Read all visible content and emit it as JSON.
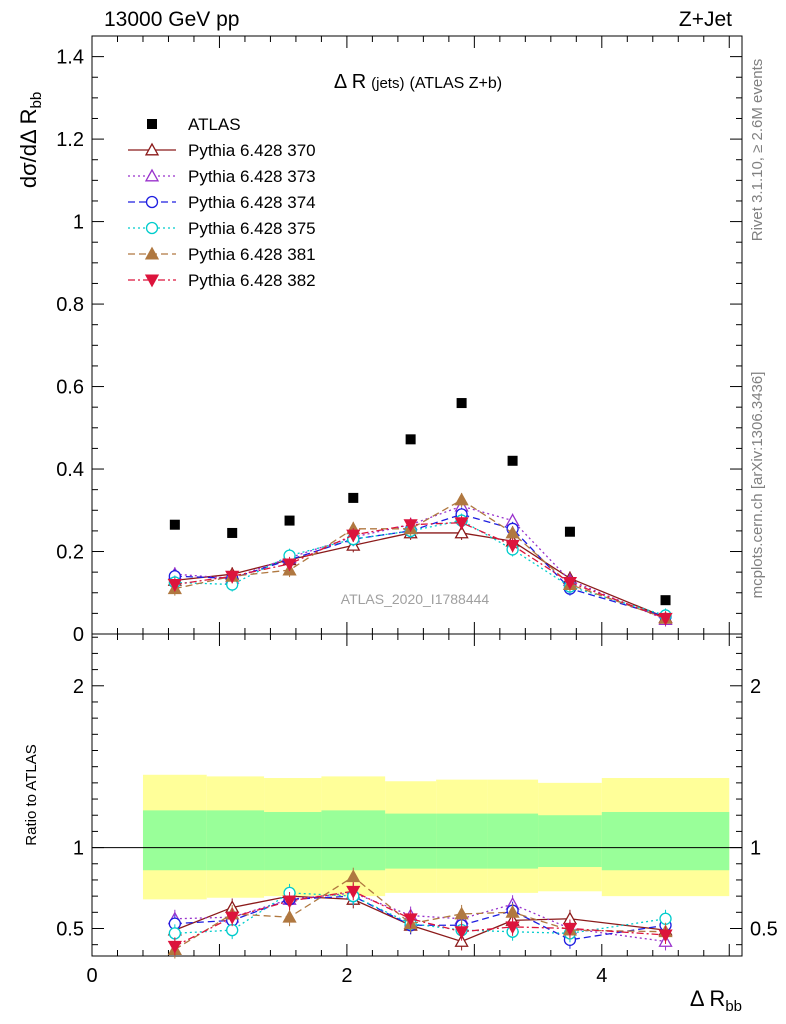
{
  "header": {
    "left": "13000 GeV pp",
    "right": "Z+Jet"
  },
  "side_labels": {
    "rivet": "Rivet 3.1.10, ≥ 2.6M events",
    "mcplots": "mcplots.cern.ch [arXiv:1306.3436]"
  },
  "chart_data": [
    {
      "type": "scatter",
      "panel": "main",
      "title": "Δ R (jets) (ATLAS Z+b)",
      "title_main": "Δ R",
      "title_small": "(jets)",
      "title_rest": "(ATLAS Z+b)",
      "ylabel": "dσ/dΔ R",
      "ylabel_sub": "bb",
      "watermark": "ATLAS_2020_I1788444",
      "ylim": [
        0,
        1.45
      ],
      "xlim": [
        0,
        5.1
      ],
      "y_ticks": [
        "0",
        "0.2",
        "0.4",
        "0.6",
        "0.8",
        "1",
        "1.2",
        "1.4"
      ],
      "legend_position": "top-left",
      "x": [
        0.65,
        1.1,
        1.55,
        2.05,
        2.5,
        2.9,
        3.3,
        3.75,
        4.5
      ],
      "series": [
        {
          "name": "ATLAS",
          "color": "#000000",
          "style": "data",
          "marker": "square",
          "values": [
            0.265,
            0.245,
            0.275,
            0.33,
            0.472,
            0.56,
            0.42,
            0.248,
            0.082
          ]
        },
        {
          "name": "Pythia 6.428 370",
          "color": "#8b1a1a",
          "style": "solid",
          "marker": "triangle-open",
          "values": [
            0.13,
            0.145,
            0.18,
            0.215,
            0.245,
            0.245,
            0.225,
            0.135,
            0.04
          ]
        },
        {
          "name": "Pythia 6.428 373",
          "color": "#9932cc",
          "style": "dotted",
          "marker": "triangle-open",
          "values": [
            0.145,
            0.135,
            0.185,
            0.235,
            0.265,
            0.31,
            0.275,
            0.13,
            0.035
          ]
        },
        {
          "name": "Pythia 6.428 374",
          "color": "#1e1ee0",
          "style": "dashed",
          "marker": "circle-open",
          "values": [
            0.14,
            0.135,
            0.18,
            0.23,
            0.25,
            0.29,
            0.255,
            0.11,
            0.042
          ]
        },
        {
          "name": "Pythia 6.428 375",
          "color": "#00cccc",
          "style": "dotted",
          "marker": "circle-open",
          "values": [
            0.125,
            0.12,
            0.19,
            0.23,
            0.25,
            0.275,
            0.205,
            0.115,
            0.045
          ]
        },
        {
          "name": "Pythia 6.428 381",
          "color": "#b07840",
          "style": "dashed",
          "marker": "triangle-filled",
          "values": [
            0.11,
            0.14,
            0.155,
            0.255,
            0.255,
            0.325,
            0.245,
            0.12,
            0.038
          ]
        },
        {
          "name": "Pythia 6.428 382",
          "color": "#dc143c",
          "style": "dashdot",
          "marker": "triangle-down-filled",
          "values": [
            0.12,
            0.14,
            0.17,
            0.24,
            0.265,
            0.27,
            0.215,
            0.125,
            0.038
          ]
        }
      ]
    },
    {
      "type": "scatter",
      "panel": "ratio",
      "ylabel": "Ratio to ATLAS",
      "xlabel": "Δ R",
      "xlabel_sub": "bb",
      "ylim": [
        0.33,
        2.32
      ],
      "xlim": [
        0,
        5.1
      ],
      "x_ticks": [
        "0",
        "2",
        "4"
      ],
      "y_ticks": [
        "0.5",
        "1",
        "2"
      ],
      "bands": [
        {
          "x0": 0.4,
          "x1": 0.9,
          "outer": [
            0.68,
            1.45
          ],
          "inner": [
            0.86,
            1.23
          ]
        },
        {
          "x0": 0.9,
          "x1": 1.35,
          "outer": [
            0.69,
            1.44
          ],
          "inner": [
            0.86,
            1.23
          ]
        },
        {
          "x0": 1.35,
          "x1": 1.8,
          "outer": [
            0.7,
            1.43
          ],
          "inner": [
            0.86,
            1.22
          ]
        },
        {
          "x0": 1.8,
          "x1": 2.3,
          "outer": [
            0.7,
            1.44
          ],
          "inner": [
            0.86,
            1.23
          ]
        },
        {
          "x0": 2.3,
          "x1": 2.7,
          "outer": [
            0.72,
            1.41
          ],
          "inner": [
            0.87,
            1.21
          ]
        },
        {
          "x0": 2.7,
          "x1": 3.1,
          "outer": [
            0.72,
            1.42
          ],
          "inner": [
            0.87,
            1.21
          ]
        },
        {
          "x0": 3.1,
          "x1": 3.5,
          "outer": [
            0.72,
            1.42
          ],
          "inner": [
            0.87,
            1.21
          ]
        },
        {
          "x0": 3.5,
          "x1": 4.0,
          "outer": [
            0.73,
            1.4
          ],
          "inner": [
            0.88,
            1.2
          ]
        },
        {
          "x0": 4.0,
          "x1": 5.0,
          "outer": [
            0.7,
            1.43
          ],
          "inner": [
            0.86,
            1.22
          ]
        }
      ],
      "x": [
        0.65,
        1.1,
        1.55,
        2.05,
        2.5,
        2.9,
        3.3,
        3.75,
        4.5
      ],
      "series": [
        {
          "name": "Pythia 6.428 370",
          "color": "#8b1a1a",
          "style": "solid",
          "marker": "triangle-open",
          "values": [
            0.49,
            0.63,
            0.7,
            0.68,
            0.52,
            0.42,
            0.55,
            0.56,
            0.49
          ]
        },
        {
          "name": "Pythia 6.428 373",
          "color": "#9932cc",
          "style": "dotted",
          "marker": "triangle-open",
          "values": [
            0.56,
            0.57,
            0.68,
            0.72,
            0.58,
            0.56,
            0.65,
            0.5,
            0.42
          ]
        },
        {
          "name": "Pythia 6.428 374",
          "color": "#1e1ee0",
          "style": "dashed",
          "marker": "circle-open",
          "values": [
            0.53,
            0.55,
            0.68,
            0.7,
            0.52,
            0.52,
            0.61,
            0.43,
            0.52
          ]
        },
        {
          "name": "Pythia 6.428 375",
          "color": "#00cccc",
          "style": "dotted",
          "marker": "circle-open",
          "values": [
            0.47,
            0.49,
            0.72,
            0.7,
            0.53,
            0.49,
            0.48,
            0.47,
            0.56
          ]
        },
        {
          "name": "Pythia 6.428 381",
          "color": "#b07840",
          "style": "dashed",
          "marker": "triangle-filled",
          "values": [
            0.37,
            0.59,
            0.57,
            0.82,
            0.53,
            0.59,
            0.6,
            0.49,
            0.48
          ]
        },
        {
          "name": "Pythia 6.428 382",
          "color": "#dc143c",
          "style": "dashdot",
          "marker": "triangle-down-filled",
          "values": [
            0.39,
            0.57,
            0.67,
            0.73,
            0.56,
            0.48,
            0.51,
            0.5,
            0.46
          ]
        }
      ]
    }
  ]
}
